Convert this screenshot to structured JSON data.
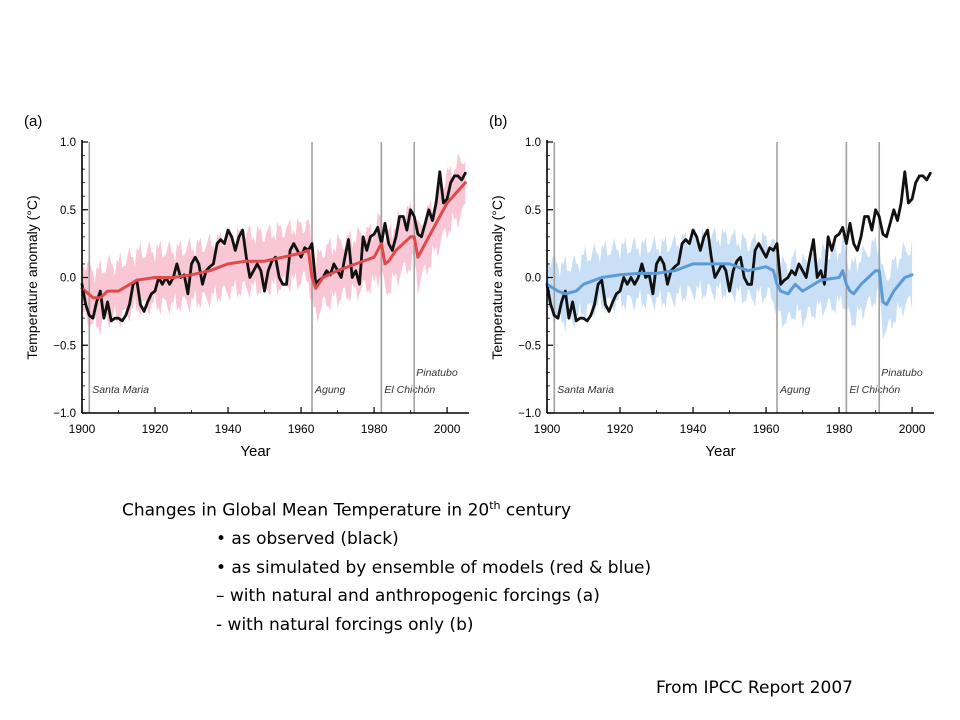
{
  "chart_data": [
    {
      "type": "line",
      "panel_label": "(a)",
      "xlabel": "Year",
      "ylabel": "Temperature anomaly (°C)",
      "xlim": [
        1900,
        2006
      ],
      "ylim": [
        -1.0,
        1.0
      ],
      "x_ticks": [
        1900,
        1920,
        1940,
        1960,
        1980,
        2000
      ],
      "y_ticks": [
        -1.0,
        -0.5,
        0.0,
        0.5,
        1.0
      ],
      "y_tick_labels": [
        "−1.0",
        "−0.5",
        "0.0",
        "0.5",
        "1.0"
      ],
      "grid": false,
      "volcanoes": [
        {
          "year": 1902,
          "name": "Santa Maria",
          "label_row": "low"
        },
        {
          "year": 1963,
          "name": "Agung",
          "label_row": "low"
        },
        {
          "year": 1982,
          "name": "El Chichón",
          "label_row": "low"
        },
        {
          "year": 1991,
          "name": "Pinatubo",
          "label_row": "high"
        }
      ],
      "band_color": "#f8c6d4",
      "series": [
        {
          "role": "observed",
          "color": "#111111",
          "x": [
            1900,
            1901,
            1902,
            1903,
            1904,
            1905,
            1906,
            1907,
            1908,
            1909,
            1910,
            1911,
            1912,
            1913,
            1914,
            1915,
            1916,
            1917,
            1918,
            1919,
            1920,
            1921,
            1922,
            1923,
            1924,
            1925,
            1926,
            1927,
            1928,
            1929,
            1930,
            1931,
            1932,
            1933,
            1934,
            1935,
            1936,
            1937,
            1938,
            1939,
            1940,
            1941,
            1942,
            1943,
            1944,
            1945,
            1946,
            1947,
            1948,
            1949,
            1950,
            1951,
            1952,
            1953,
            1954,
            1955,
            1956,
            1957,
            1958,
            1959,
            1960,
            1961,
            1962,
            1963,
            1964,
            1965,
            1966,
            1967,
            1968,
            1969,
            1970,
            1971,
            1972,
            1973,
            1974,
            1975,
            1976,
            1977,
            1978,
            1979,
            1980,
            1981,
            1982,
            1983,
            1984,
            1985,
            1986,
            1987,
            1988,
            1989,
            1990,
            1991,
            1992,
            1993,
            1994,
            1995,
            1996,
            1997,
            1998,
            1999,
            2000,
            2001,
            2002,
            2003,
            2004,
            2005
          ],
          "y": [
            -0.05,
            -0.2,
            -0.28,
            -0.3,
            -0.18,
            -0.1,
            -0.3,
            -0.18,
            -0.32,
            -0.3,
            -0.3,
            -0.32,
            -0.28,
            -0.2,
            -0.05,
            -0.02,
            -0.2,
            -0.25,
            -0.18,
            -0.12,
            -0.1,
            0.0,
            -0.05,
            0.0,
            -0.05,
            0.0,
            0.1,
            0.0,
            0.02,
            -0.12,
            0.1,
            0.15,
            0.1,
            -0.05,
            0.05,
            0.08,
            0.1,
            0.25,
            0.28,
            0.25,
            0.35,
            0.3,
            0.2,
            0.3,
            0.35,
            0.15,
            0.0,
            0.05,
            0.1,
            0.05,
            -0.1,
            0.05,
            0.12,
            0.15,
            0.0,
            -0.05,
            -0.05,
            0.2,
            0.25,
            0.2,
            0.15,
            0.22,
            0.2,
            0.25,
            -0.05,
            -0.02,
            0.0,
            0.05,
            0.02,
            0.1,
            0.05,
            0.0,
            0.15,
            0.28,
            0.0,
            0.05,
            -0.05,
            0.3,
            0.2,
            0.3,
            0.32,
            0.37,
            0.25,
            0.4,
            0.25,
            0.2,
            0.3,
            0.45,
            0.45,
            0.35,
            0.5,
            0.45,
            0.32,
            0.3,
            0.4,
            0.5,
            0.42,
            0.55,
            0.78,
            0.55,
            0.58,
            0.7,
            0.75,
            0.75,
            0.72,
            0.77
          ]
        },
        {
          "role": "simulated",
          "color": "#e04a4a",
          "x": [
            1900,
            1903,
            1905,
            1907,
            1910,
            1915,
            1920,
            1925,
            1930,
            1935,
            1940,
            1945,
            1950,
            1955,
            1960,
            1962,
            1963,
            1964,
            1966,
            1970,
            1975,
            1980,
            1982,
            1983,
            1984,
            1986,
            1990,
            1991,
            1992,
            1993,
            1995,
            2000,
            2005
          ],
          "y": [
            -0.08,
            -0.15,
            -0.15,
            -0.1,
            -0.1,
            -0.02,
            0.0,
            0.0,
            0.02,
            0.05,
            0.1,
            0.12,
            0.12,
            0.15,
            0.18,
            0.2,
            0.0,
            -0.08,
            0.0,
            0.05,
            0.1,
            0.15,
            0.25,
            0.1,
            0.12,
            0.2,
            0.3,
            0.3,
            0.15,
            0.2,
            0.3,
            0.55,
            0.7
          ]
        }
      ]
    },
    {
      "type": "line",
      "panel_label": "(b)",
      "xlabel": "Year",
      "ylabel": "Temperature anomaly (°C)",
      "xlim": [
        1900,
        2006
      ],
      "ylim": [
        -1.0,
        1.0
      ],
      "x_ticks": [
        1900,
        1920,
        1940,
        1960,
        1980,
        2000
      ],
      "y_ticks": [
        -1.0,
        -0.5,
        0.0,
        0.5,
        1.0
      ],
      "y_tick_labels": [
        "−1.0",
        "−0.5",
        "0.0",
        "0.5",
        "1.0"
      ],
      "grid": false,
      "volcanoes": [
        {
          "year": 1902,
          "name": "Santa Maria",
          "label_row": "low"
        },
        {
          "year": 1963,
          "name": "Agung",
          "label_row": "low"
        },
        {
          "year": 1982,
          "name": "El Chichón",
          "label_row": "low"
        },
        {
          "year": 1991,
          "name": "Pinatubo",
          "label_row": "high"
        }
      ],
      "band_color": "#c8dff5",
      "series": [
        {
          "role": "observed",
          "color": "#111111",
          "x": [
            1900,
            1901,
            1902,
            1903,
            1904,
            1905,
            1906,
            1907,
            1908,
            1909,
            1910,
            1911,
            1912,
            1913,
            1914,
            1915,
            1916,
            1917,
            1918,
            1919,
            1920,
            1921,
            1922,
            1923,
            1924,
            1925,
            1926,
            1927,
            1928,
            1929,
            1930,
            1931,
            1932,
            1933,
            1934,
            1935,
            1936,
            1937,
            1938,
            1939,
            1940,
            1941,
            1942,
            1943,
            1944,
            1945,
            1946,
            1947,
            1948,
            1949,
            1950,
            1951,
            1952,
            1953,
            1954,
            1955,
            1956,
            1957,
            1958,
            1959,
            1960,
            1961,
            1962,
            1963,
            1964,
            1965,
            1966,
            1967,
            1968,
            1969,
            1970,
            1971,
            1972,
            1973,
            1974,
            1975,
            1976,
            1977,
            1978,
            1979,
            1980,
            1981,
            1982,
            1983,
            1984,
            1985,
            1986,
            1987,
            1988,
            1989,
            1990,
            1991,
            1992,
            1993,
            1994,
            1995,
            1996,
            1997,
            1998,
            1999,
            2000,
            2001,
            2002,
            2003,
            2004,
            2005
          ],
          "y": [
            -0.05,
            -0.2,
            -0.28,
            -0.3,
            -0.18,
            -0.1,
            -0.3,
            -0.18,
            -0.32,
            -0.3,
            -0.3,
            -0.32,
            -0.28,
            -0.2,
            -0.05,
            -0.02,
            -0.2,
            -0.25,
            -0.18,
            -0.12,
            -0.1,
            0.0,
            -0.05,
            0.0,
            -0.05,
            0.0,
            0.1,
            0.0,
            0.02,
            -0.12,
            0.1,
            0.15,
            0.1,
            -0.05,
            0.05,
            0.08,
            0.1,
            0.25,
            0.28,
            0.25,
            0.35,
            0.3,
            0.2,
            0.3,
            0.35,
            0.15,
            0.0,
            0.05,
            0.1,
            0.05,
            -0.1,
            0.05,
            0.12,
            0.15,
            0.0,
            -0.05,
            -0.05,
            0.2,
            0.25,
            0.2,
            0.15,
            0.22,
            0.2,
            0.25,
            -0.05,
            -0.02,
            0.0,
            0.05,
            0.02,
            0.1,
            0.05,
            0.0,
            0.15,
            0.28,
            0.0,
            0.05,
            -0.05,
            0.3,
            0.2,
            0.3,
            0.32,
            0.37,
            0.25,
            0.4,
            0.25,
            0.2,
            0.3,
            0.45,
            0.45,
            0.35,
            0.5,
            0.45,
            0.32,
            0.3,
            0.4,
            0.5,
            0.42,
            0.55,
            0.78,
            0.55,
            0.58,
            0.7,
            0.75,
            0.75,
            0.72,
            0.77
          ]
        },
        {
          "role": "simulated",
          "color": "#5b9bd5",
          "x": [
            1900,
            1903,
            1905,
            1908,
            1910,
            1915,
            1920,
            1925,
            1930,
            1935,
            1940,
            1945,
            1950,
            1955,
            1960,
            1962,
            1963,
            1964,
            1966,
            1968,
            1970,
            1975,
            1980,
            1981,
            1982,
            1983,
            1984,
            1986,
            1988,
            1990,
            1991,
            1992,
            1993,
            1995,
            1998,
            2000
          ],
          "y": [
            -0.05,
            -0.1,
            -0.12,
            -0.1,
            -0.05,
            0.0,
            0.02,
            0.03,
            0.03,
            0.05,
            0.1,
            0.1,
            0.1,
            0.05,
            0.08,
            0.05,
            -0.05,
            -0.1,
            -0.12,
            -0.05,
            -0.1,
            -0.02,
            0.0,
            0.05,
            -0.05,
            -0.1,
            -0.12,
            -0.05,
            0.0,
            0.05,
            0.05,
            -0.18,
            -0.2,
            -0.1,
            0.0,
            0.02
          ]
        }
      ]
    }
  ],
  "caption": {
    "line1_main": "Changes in Global Mean Temperature in 20",
    "line1_sup": "th",
    "line1_end": " century",
    "bullets": [
      "• as observed (black)",
      "• as simulated by ensemble of models (red & blue)",
      "– with natural and anthropogenic forcings (a)",
      "- with natural forcings only (b)"
    ]
  },
  "source": "From IPCC Report 2007"
}
